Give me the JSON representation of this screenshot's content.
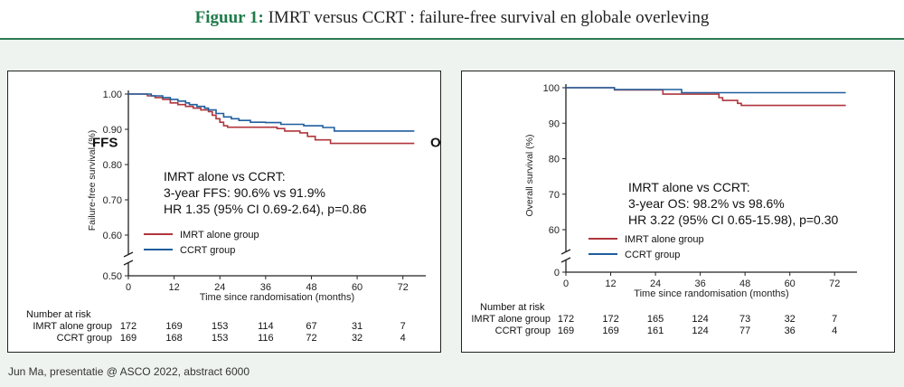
{
  "header": {
    "label": "Figuur 1:",
    "title": "IMRT versus CCRT : failure-free survival en globale overleving"
  },
  "footnote": "Jun Ma, presentatie @ ASCO 2022, abstract 6000",
  "colors": {
    "imrt": "#b0363c",
    "ccrt": "#1f5e9e",
    "accent": "#1f7a4a"
  },
  "chart_data": [
    {
      "type": "line",
      "subtype": "kaplan-meier",
      "name": "ffs",
      "ylabel": "Failure-free survival (%)",
      "xlabel": "Time since randomisation (months)",
      "x_ticks": [
        0,
        12,
        24,
        36,
        48,
        60,
        72
      ],
      "y_ticks": [
        0.5,
        0.6,
        0.7,
        0.8,
        0.9,
        1.0
      ],
      "y_tick_labels": [
        "0.50",
        "0.60",
        "0.70",
        "0.80",
        "0.90",
        "1.00"
      ],
      "xlim": [
        0,
        78
      ],
      "ylim": [
        0.5,
        1.0
      ],
      "axis_break": true,
      "side_labels": [
        "FFS",
        "OS"
      ],
      "annotation": [
        "IMRT alone vs CCRT:",
        "3-year FFS: 90.6% vs 91.9%",
        "HR 1.35 (95% CI 0.69-2.64), p=0.86"
      ],
      "series": [
        {
          "name": "IMRT alone group",
          "color": "#b0363c",
          "points": [
            [
              0,
              1.0
            ],
            [
              4,
              1.0
            ],
            [
              5,
              0.995
            ],
            [
              7,
              0.99
            ],
            [
              9,
              0.985
            ],
            [
              11,
              0.975
            ],
            [
              13,
              0.97
            ],
            [
              15,
              0.965
            ],
            [
              17,
              0.96
            ],
            [
              19,
              0.955
            ],
            [
              21,
              0.95
            ],
            [
              22,
              0.94
            ],
            [
              23,
              0.93
            ],
            [
              24,
              0.92
            ],
            [
              25,
              0.91
            ],
            [
              26,
              0.906
            ],
            [
              36,
              0.906
            ],
            [
              39,
              0.902
            ],
            [
              41,
              0.895
            ],
            [
              45,
              0.89
            ],
            [
              47,
              0.88
            ],
            [
              49,
              0.87
            ],
            [
              53,
              0.86
            ],
            [
              75,
              0.86
            ]
          ]
        },
        {
          "name": "CCRT group",
          "color": "#1f5e9e",
          "points": [
            [
              0,
              1.0
            ],
            [
              5,
              1.0
            ],
            [
              6,
              0.995
            ],
            [
              9,
              0.99
            ],
            [
              11,
              0.985
            ],
            [
              13,
              0.98
            ],
            [
              15,
              0.975
            ],
            [
              16,
              0.97
            ],
            [
              18,
              0.965
            ],
            [
              20,
              0.96
            ],
            [
              21,
              0.955
            ],
            [
              23,
              0.945
            ],
            [
              25,
              0.935
            ],
            [
              27,
              0.93
            ],
            [
              29,
              0.925
            ],
            [
              32,
              0.92
            ],
            [
              36,
              0.919
            ],
            [
              40,
              0.914
            ],
            [
              46,
              0.91
            ],
            [
              51,
              0.905
            ],
            [
              54,
              0.895
            ],
            [
              75,
              0.895
            ]
          ]
        }
      ],
      "risk_table": {
        "header": "Number at risk",
        "rows": [
          {
            "label": "IMRT alone group",
            "values": [
              "172",
              "169",
              "153",
              "114",
              "67",
              "31",
              "7"
            ]
          },
          {
            "label": "CCRT group",
            "values": [
              "169",
              "168",
              "153",
              "116",
              "72",
              "32",
              "4"
            ]
          }
        ]
      }
    },
    {
      "type": "line",
      "subtype": "kaplan-meier",
      "name": "os",
      "ylabel": "Overall survival (%)",
      "xlabel": "Time since randomisation (months)",
      "x_ticks": [
        0,
        12,
        24,
        36,
        48,
        60,
        72
      ],
      "y_ticks": [
        0,
        60,
        70,
        80,
        90,
        100
      ],
      "y_tick_labels": [
        "0",
        "60",
        "70",
        "80",
        "90",
        "100"
      ],
      "xlim": [
        0,
        78
      ],
      "ylim": [
        0,
        100
      ],
      "axis_break": true,
      "annotation": [
        "IMRT alone vs CCRT:",
        "3-year OS: 98.2% vs 98.6%",
        "HR 3.22 (95% CI 0.65-15.98), p=0.30"
      ],
      "series": [
        {
          "name": "IMRT alone group",
          "color": "#b0363c",
          "points": [
            [
              0,
              100
            ],
            [
              12,
              100
            ],
            [
              13,
              99.4
            ],
            [
              25,
              99.4
            ],
            [
              26,
              98.2
            ],
            [
              36,
              98.2
            ],
            [
              41,
              97.2
            ],
            [
              42,
              96.4
            ],
            [
              46,
              95.6
            ],
            [
              47,
              95
            ],
            [
              75,
              95
            ]
          ]
        },
        {
          "name": "CCRT group",
          "color": "#1f5e9e",
          "points": [
            [
              0,
              100
            ],
            [
              12,
              100
            ],
            [
              13,
              99.5
            ],
            [
              30,
              99.5
            ],
            [
              31,
              98.6
            ],
            [
              75,
              98.6
            ]
          ]
        }
      ],
      "risk_table": {
        "header": "Number at risk",
        "rows": [
          {
            "label": "IMRT alone group",
            "values": [
              "172",
              "172",
              "165",
              "124",
              "73",
              "32",
              "7"
            ]
          },
          {
            "label": "CCRT group",
            "values": [
              "169",
              "169",
              "161",
              "124",
              "77",
              "36",
              "4"
            ]
          }
        ]
      }
    }
  ]
}
